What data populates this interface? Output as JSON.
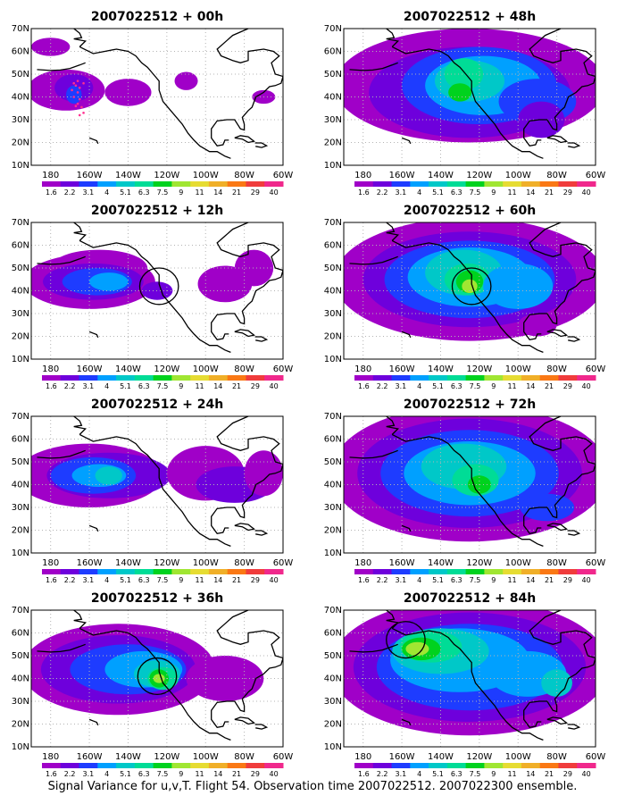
{
  "figure": {
    "caption": "Signal Variance for u,v,T. Flight 54. Observation time 2007022512. 2007022300 ensemble."
  },
  "lon_ticks": [
    "180",
    "160W",
    "140W",
    "120W",
    "100W",
    "80W",
    "60W"
  ],
  "lat_ticks": [
    "10N",
    "20N",
    "30N",
    "40N",
    "50N",
    "60N",
    "70N"
  ],
  "colorbar": {
    "labels": [
      "1.6",
      "2.2",
      "3.1",
      "4",
      "5.1",
      "6.3",
      "7.5",
      "9",
      "11",
      "14",
      "21",
      "29",
      "40"
    ],
    "colors": [
      "#a000c8",
      "#6e00dc",
      "#1e3cff",
      "#00a0ff",
      "#00c8c8",
      "#00dc96",
      "#00d21e",
      "#a0e632",
      "#e6dc32",
      "#f0af28",
      "#fa7814",
      "#f03c3c",
      "#f0288c"
    ]
  },
  "colors": {
    "land_outline": "#000000",
    "grid": "#b4b4b4",
    "circle": "#000000",
    "obs_points": "#ff3090"
  },
  "panels": [
    {
      "title": "2007022512 + 00h",
      "max_level": 3,
      "has_circle": false,
      "has_obs_points": true
    },
    {
      "title": "2007022512 + 48h",
      "max_level": 7,
      "has_circle": false,
      "has_obs_points": false
    },
    {
      "title": "2007022512 + 12h",
      "max_level": 4,
      "has_circle": true,
      "has_obs_points": false
    },
    {
      "title": "2007022512 + 60h",
      "max_level": 8,
      "has_circle": true,
      "has_obs_points": false
    },
    {
      "title": "2007022512 + 24h",
      "max_level": 5,
      "has_circle": false,
      "has_obs_points": false
    },
    {
      "title": "2007022512 + 72h",
      "max_level": 7,
      "has_circle": false,
      "has_obs_points": false
    },
    {
      "title": "2007022512 + 36h",
      "max_level": 8,
      "has_circle": true,
      "has_obs_points": false
    },
    {
      "title": "2007022512 + 84h",
      "max_level": 9,
      "has_circle": true,
      "has_obs_points": false
    }
  ]
}
